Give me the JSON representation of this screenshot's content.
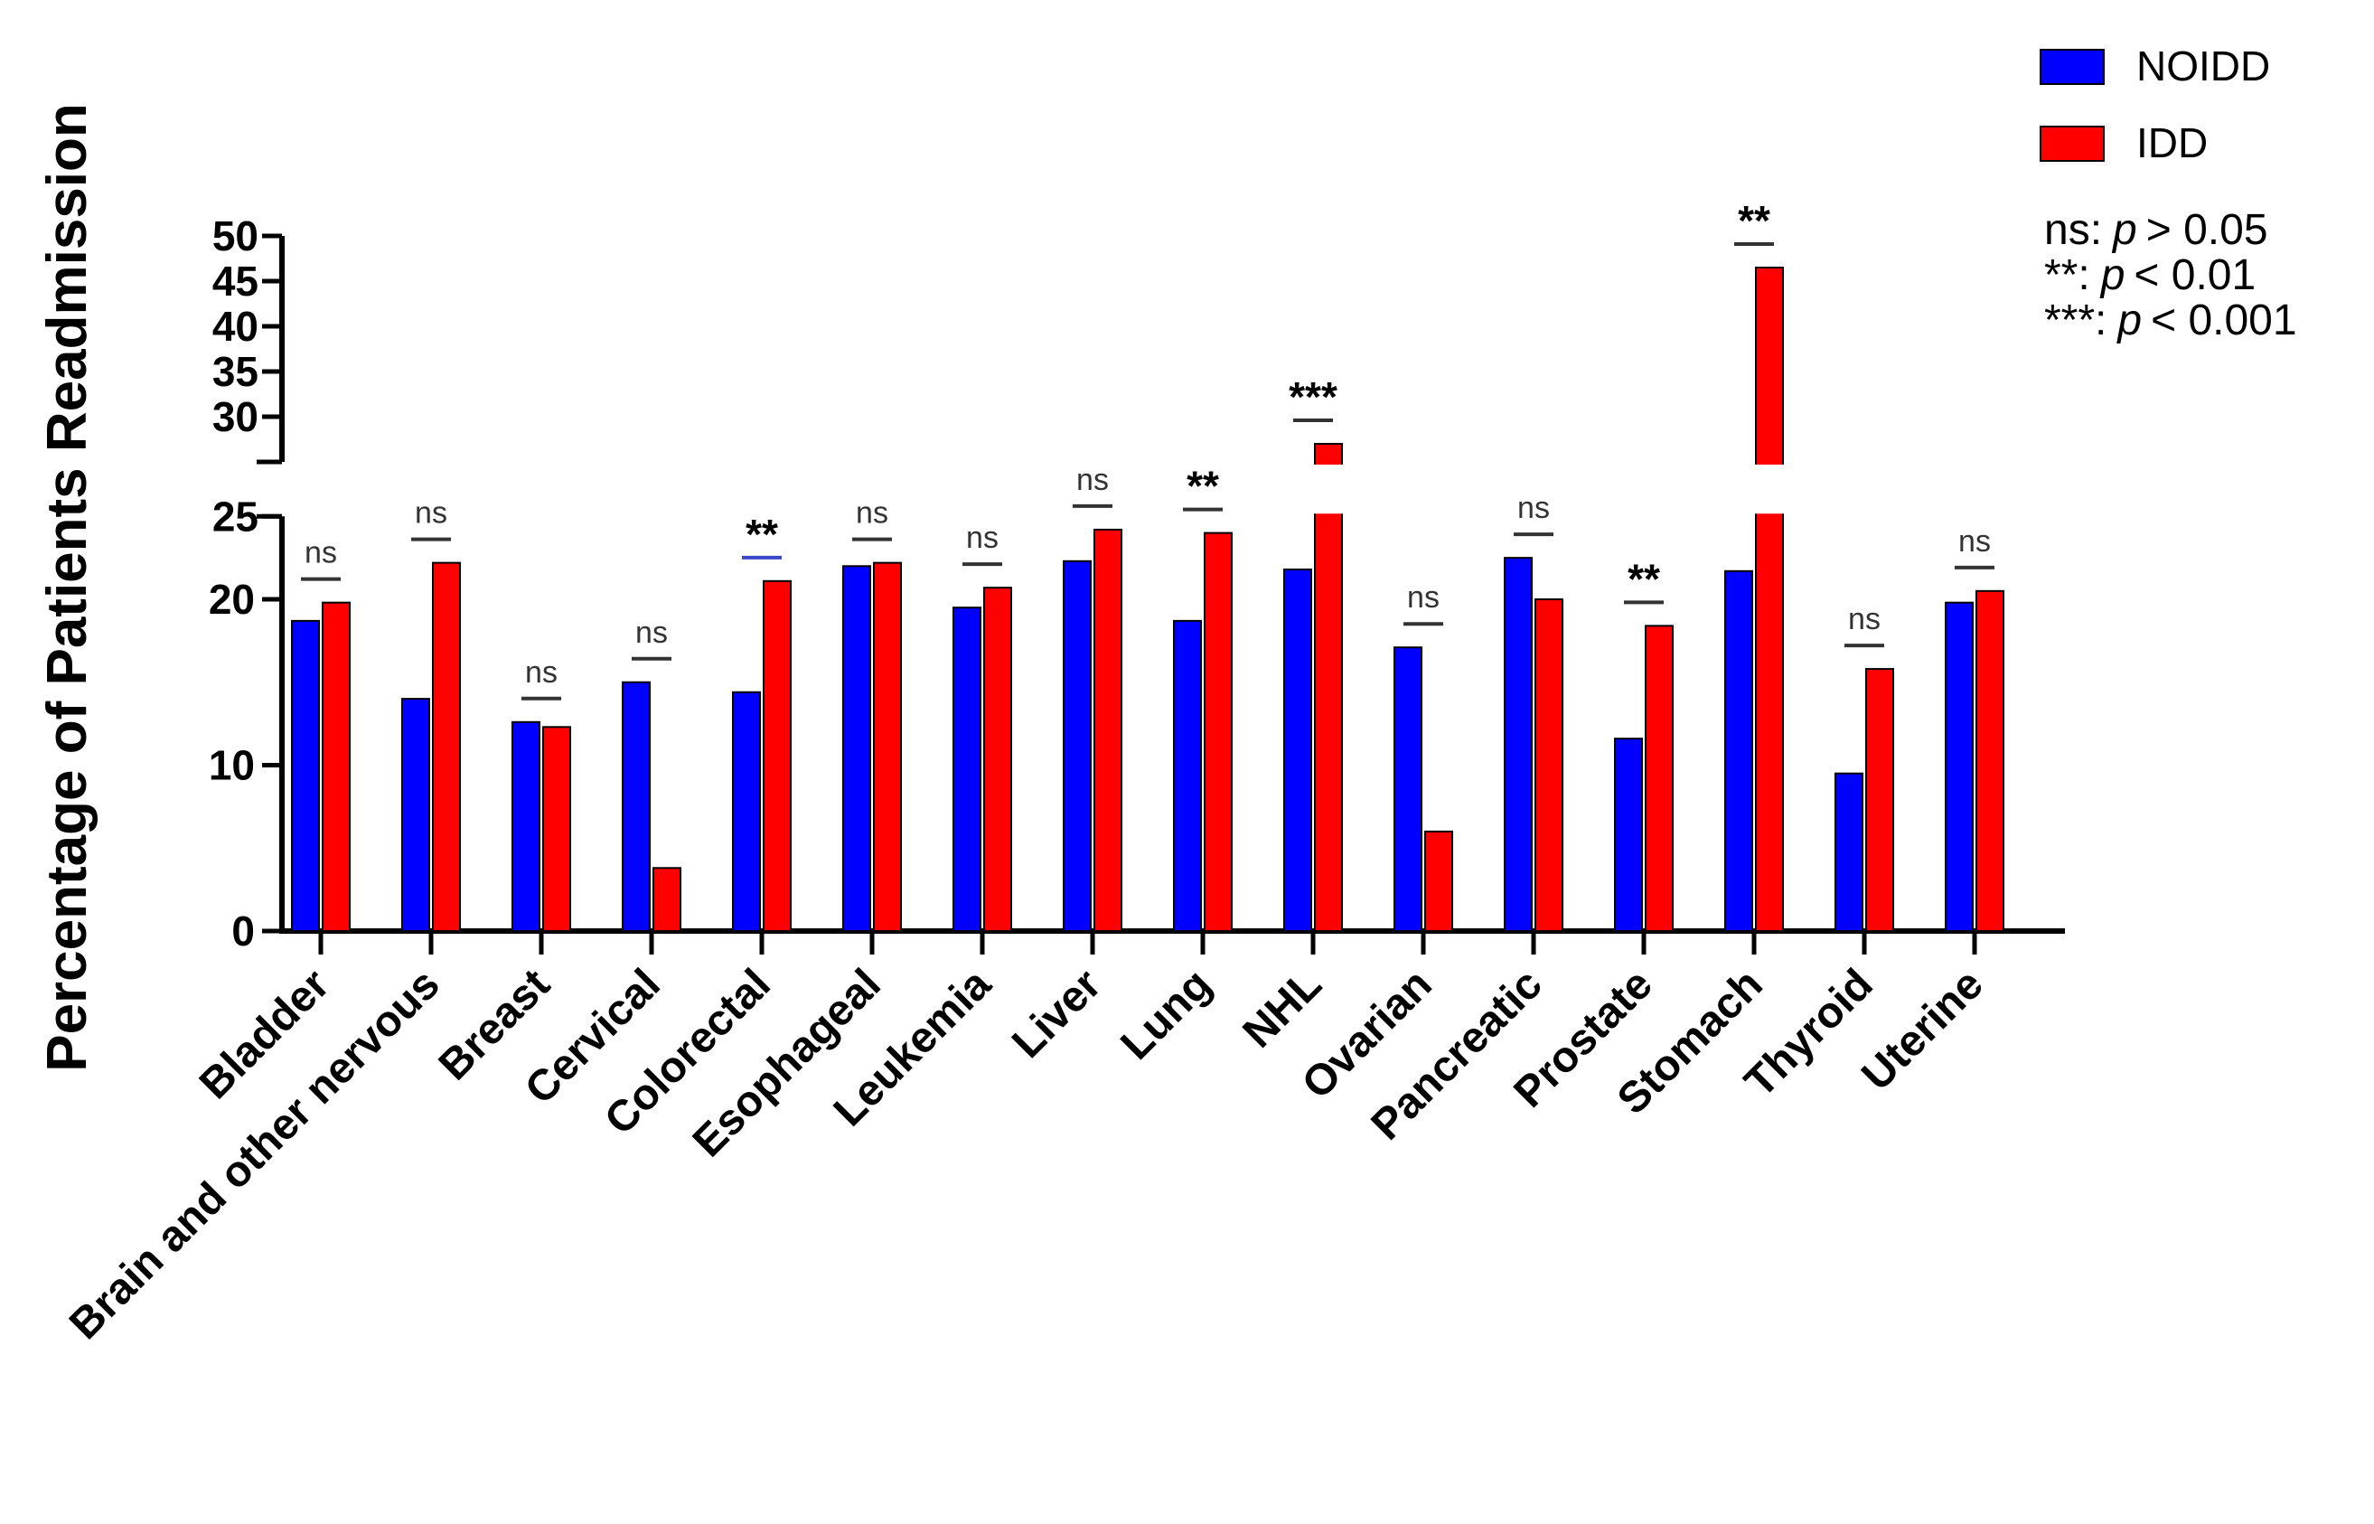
{
  "chart_data": {
    "type": "bar",
    "ylabel": "Percentage of Patients Readmission",
    "xlabel": "",
    "categories": [
      "Bladder",
      "Brain and other nervous",
      "Breast",
      "Cervical",
      "Colorectal",
      "Esophageal",
      "Leukemia",
      "Liver",
      "Lung",
      "NHL",
      "Ovarian",
      "Pancreatic",
      "Prostate",
      "Stomach",
      "Thyroid",
      "Uterine"
    ],
    "series": [
      {
        "name": "NOIDD",
        "color": "#0000ff",
        "values": [
          18.7,
          14.0,
          12.6,
          15.0,
          14.4,
          22.0,
          19.5,
          22.3,
          18.7,
          21.8,
          17.1,
          22.5,
          11.6,
          21.7,
          9.5,
          19.8
        ]
      },
      {
        "name": "IDD",
        "color": "#ff0000",
        "values": [
          19.8,
          22.2,
          12.3,
          3.8,
          21.1,
          22.2,
          20.7,
          24.2,
          24.0,
          27.0,
          6.0,
          20.0,
          18.4,
          46.5,
          15.8,
          20.5
        ]
      }
    ],
    "significance": [
      "ns",
      "ns",
      "ns",
      "ns",
      "**",
      "ns",
      "ns",
      "ns",
      "**",
      "***",
      "ns",
      "ns",
      "**",
      "**",
      "ns",
      "ns"
    ],
    "y_axis": {
      "type": "broken",
      "lower_range": [
        0,
        25
      ],
      "lower_ticks": [
        "0",
        "10",
        "20"
      ],
      "upper_range": [
        25,
        50
      ],
      "upper_ticks": [
        "25",
        "30",
        "35",
        "40",
        "45",
        "50"
      ]
    },
    "legend_position": "top-right",
    "significance_legend": [
      {
        "symbol": "ns:",
        "p": "p",
        "relation": "> 0.05"
      },
      {
        "symbol": "**:",
        "p": "p",
        "relation": "<  0.01"
      },
      {
        "symbol": "***:",
        "p": "p",
        "relation": "< 0.001"
      }
    ],
    "grid": false
  }
}
